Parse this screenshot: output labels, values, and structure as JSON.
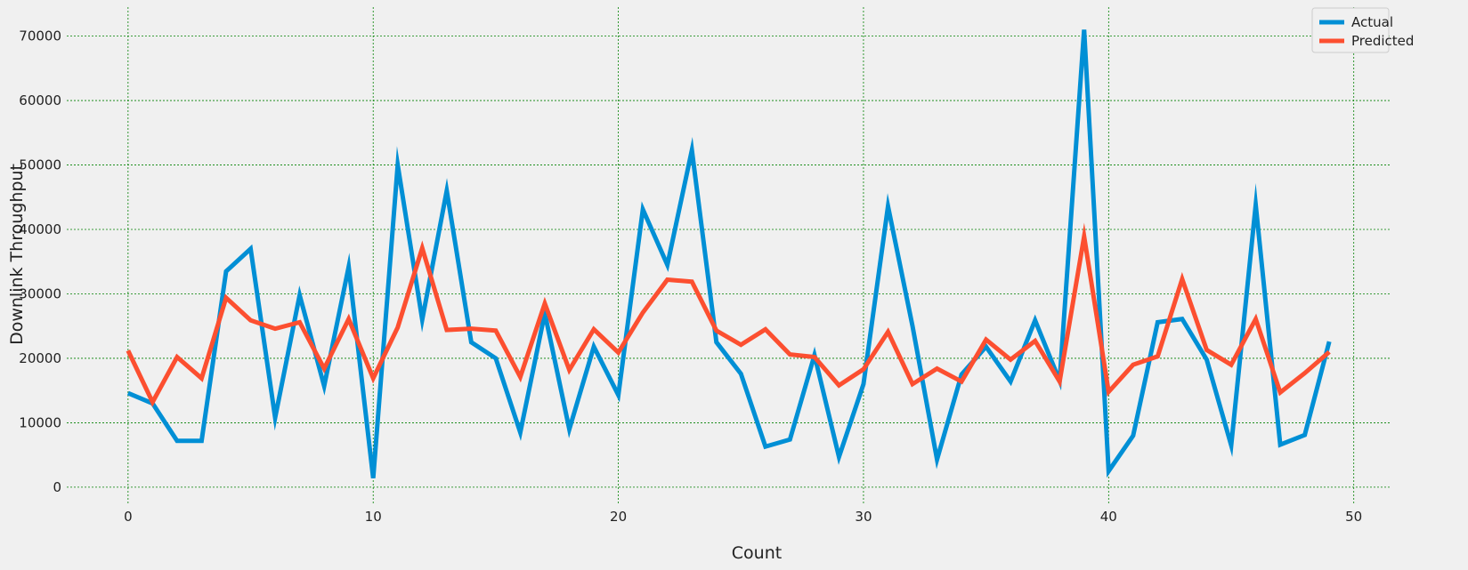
{
  "chart_data": {
    "type": "line",
    "title": "",
    "xlabel": "Count",
    "ylabel": "Downlink Throughput",
    "xlim": [
      -2.5,
      51.5
    ],
    "ylim": [
      -2500,
      74500
    ],
    "x_ticks": [
      0,
      10,
      20,
      30,
      40,
      50
    ],
    "y_ticks": [
      0,
      10000,
      20000,
      30000,
      40000,
      50000,
      60000,
      70000
    ],
    "grid": true,
    "grid_color": "#008000",
    "legend_position": "top-right",
    "x": [
      0,
      1,
      2,
      3,
      4,
      5,
      6,
      7,
      8,
      9,
      10,
      11,
      12,
      13,
      14,
      15,
      16,
      17,
      18,
      19,
      20,
      21,
      22,
      23,
      24,
      25,
      26,
      27,
      28,
      29,
      30,
      31,
      32,
      33,
      34,
      35,
      36,
      37,
      38,
      39,
      40,
      41,
      42,
      43,
      44,
      45,
      46,
      47,
      48,
      49
    ],
    "series": [
      {
        "name": "Actual",
        "color": "#008fd5",
        "values": [
          14600,
          13000,
          7200,
          7200,
          33500,
          37000,
          10800,
          29800,
          15700,
          34200,
          1400,
          50000,
          26000,
          46000,
          22500,
          20000,
          8500,
          27000,
          9000,
          21800,
          14300,
          43100,
          34500,
          52300,
          22500,
          17600,
          6300,
          7400,
          20500,
          4700,
          16000,
          43600,
          25000,
          4300,
          17500,
          21800,
          16400,
          25900,
          16500,
          71000,
          2500,
          8000,
          25600,
          26100,
          19800,
          6500,
          43800,
          6600,
          8100,
          22600
        ]
      },
      {
        "name": "Predicted",
        "color": "#fc4f30",
        "values": [
          21200,
          13200,
          20200,
          16900,
          29400,
          25900,
          24600,
          25600,
          18400,
          26100,
          16900,
          24800,
          37100,
          24400,
          24600,
          24300,
          17100,
          28500,
          18200,
          24500,
          20900,
          27100,
          32200,
          31900,
          24300,
          22100,
          24500,
          20600,
          20200,
          15800,
          18300,
          24100,
          16000,
          18400,
          16400,
          22900,
          19800,
          22700,
          16400,
          38900,
          14800,
          19000,
          20300,
          32300,
          21300,
          19000,
          26100,
          14700,
          17700,
          21000
        ]
      }
    ]
  }
}
